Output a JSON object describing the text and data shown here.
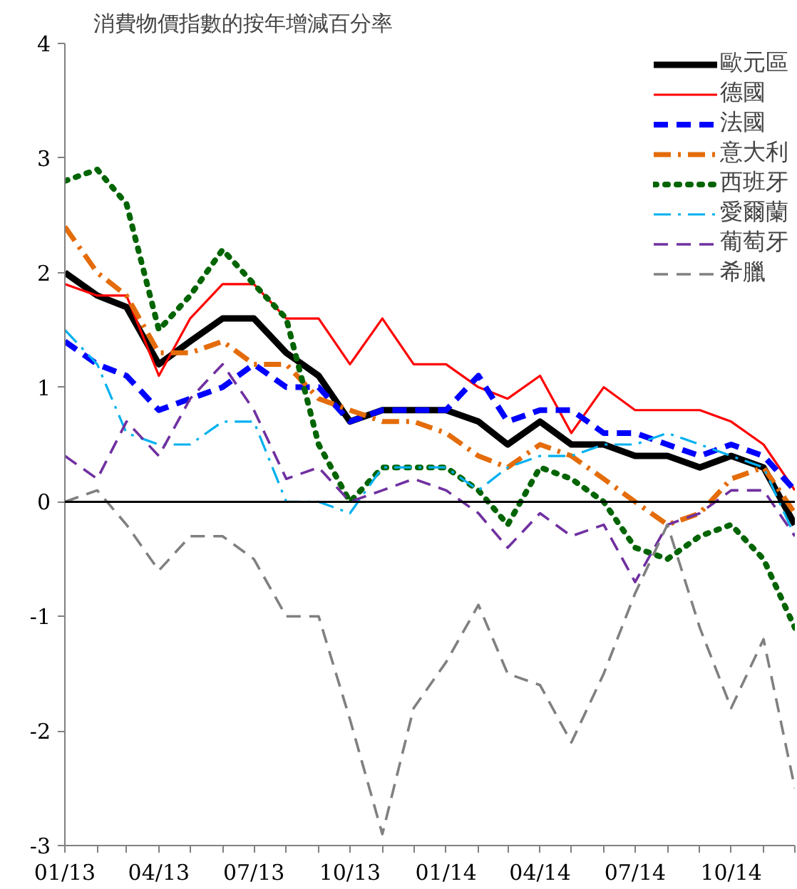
{
  "chart_data": {
    "type": "line",
    "title": "消費物價指數的按年增減百分率",
    "x": [
      "2013-01",
      "2013-02",
      "2013-03",
      "2013-04",
      "2013-05",
      "2013-06",
      "2013-07",
      "2013-08",
      "2013-09",
      "2013-10",
      "2013-11",
      "2013-12",
      "2014-01",
      "2014-02",
      "2014-03",
      "2014-04",
      "2014-05",
      "2014-06",
      "2014-07",
      "2014-08",
      "2014-09",
      "2014-10",
      "2014-11",
      "2014-12"
    ],
    "series": [
      {
        "name": "歐元區",
        "color": "#000000",
        "line_style": "solid",
        "values": [
          2.0,
          1.8,
          1.7,
          1.2,
          1.4,
          1.6,
          1.6,
          1.3,
          1.1,
          0.7,
          0.8,
          0.8,
          0.8,
          0.7,
          0.5,
          0.7,
          0.5,
          0.5,
          0.4,
          0.4,
          0.3,
          0.4,
          0.3,
          -0.2
        ]
      },
      {
        "name": "德國",
        "color": "#ff0000",
        "line_style": "solid",
        "values": [
          1.9,
          1.8,
          1.8,
          1.1,
          1.6,
          1.9,
          1.9,
          1.6,
          1.6,
          1.2,
          1.6,
          1.2,
          1.2,
          1.0,
          0.9,
          1.1,
          0.6,
          1.0,
          0.8,
          0.8,
          0.8,
          0.7,
          0.5,
          0.1
        ]
      },
      {
        "name": "法國",
        "color": "#0000ff",
        "line_style": "dashed",
        "values": [
          1.4,
          1.2,
          1.1,
          0.8,
          0.9,
          1.0,
          1.2,
          1.0,
          1.0,
          0.7,
          0.8,
          0.8,
          0.8,
          1.1,
          0.7,
          0.8,
          0.8,
          0.6,
          0.6,
          0.5,
          0.4,
          0.5,
          0.4,
          0.1
        ]
      },
      {
        "name": "意大利",
        "color": "#e46c0a",
        "line_style": "dashdot",
        "values": [
          2.4,
          2.0,
          1.8,
          1.3,
          1.3,
          1.4,
          1.2,
          1.2,
          0.9,
          0.8,
          0.7,
          0.7,
          0.6,
          0.4,
          0.3,
          0.5,
          0.4,
          0.2,
          0.0,
          -0.2,
          -0.1,
          0.2,
          0.3,
          -0.1
        ]
      },
      {
        "name": "西班牙",
        "color": "#006400",
        "line_style": "dotted",
        "values": [
          2.8,
          2.9,
          2.6,
          1.5,
          1.8,
          2.2,
          1.9,
          1.6,
          0.5,
          0.0,
          0.3,
          0.3,
          0.3,
          0.1,
          -0.2,
          0.3,
          0.2,
          0.0,
          -0.4,
          -0.5,
          -0.3,
          -0.2,
          -0.5,
          -1.1
        ]
      },
      {
        "name": "愛爾蘭",
        "color": "#00b0f0",
        "line_style": "dashdot",
        "values": [
          1.5,
          1.2,
          0.6,
          0.5,
          0.5,
          0.7,
          0.7,
          0.0,
          0.0,
          -0.1,
          0.3,
          0.3,
          0.3,
          0.1,
          0.3,
          0.4,
          0.4,
          0.5,
          0.5,
          0.6,
          0.5,
          0.4,
          0.3,
          -0.3
        ]
      },
      {
        "name": "葡萄牙",
        "color": "#7030a0",
        "line_style": "dashed",
        "values": [
          0.4,
          0.2,
          0.7,
          0.4,
          0.9,
          1.2,
          0.8,
          0.2,
          0.3,
          0.0,
          0.1,
          0.2,
          0.1,
          -0.1,
          -0.4,
          -0.1,
          -0.3,
          -0.2,
          -0.7,
          -0.2,
          -0.1,
          0.1,
          0.1,
          -0.3
        ]
      },
      {
        "name": "希臘",
        "color": "#808080",
        "line_style": "dashed",
        "values": [
          0.0,
          0.1,
          -0.2,
          -0.6,
          -0.3,
          -0.3,
          -0.5,
          -1.0,
          -1.0,
          -1.9,
          -2.9,
          -1.8,
          -1.4,
          -0.9,
          -1.5,
          -1.6,
          -2.1,
          -1.5,
          -0.8,
          -0.2,
          -1.1,
          -1.8,
          -1.2,
          -2.5
        ]
      }
    ],
    "xlim": [
      "2013-01",
      "2014-12"
    ],
    "xticks": [
      {
        "value": "2013-01",
        "label": "01/13"
      },
      {
        "value": "2013-02",
        "label": null
      },
      {
        "value": "2013-03",
        "label": null
      },
      {
        "value": "2013-04",
        "label": "04/13"
      },
      {
        "value": "2013-05",
        "label": null
      },
      {
        "value": "2013-06",
        "label": null
      },
      {
        "value": "2013-07",
        "label": "07/13"
      },
      {
        "value": "2013-08",
        "label": null
      },
      {
        "value": "2013-09",
        "label": null
      },
      {
        "value": "2013-10",
        "label": "10/13"
      },
      {
        "value": "2013-11",
        "label": null
      },
      {
        "value": "2013-12",
        "label": null
      },
      {
        "value": "2014-01",
        "label": "01/14"
      },
      {
        "value": "2014-02",
        "label": null
      },
      {
        "value": "2014-03",
        "label": null
      },
      {
        "value": "2014-04",
        "label": "04/14"
      },
      {
        "value": "2014-05",
        "label": null
      },
      {
        "value": "2014-06",
        "label": null
      },
      {
        "value": "2014-07",
        "label": "07/14"
      },
      {
        "value": "2014-08",
        "label": null
      },
      {
        "value": "2014-09",
        "label": null
      },
      {
        "value": "2014-10",
        "label": "10/14"
      },
      {
        "value": "2014-11",
        "label": null
      },
      {
        "value": "2014-12",
        "label": null
      }
    ],
    "ylim": [
      -3,
      4
    ],
    "yticks": [
      -3,
      -2,
      -1,
      0,
      1,
      2,
      3,
      4
    ],
    "ref_lines": [
      {
        "axis": "y",
        "value": 0,
        "color": "#000000"
      }
    ],
    "grid": false,
    "legend": "top right"
  }
}
